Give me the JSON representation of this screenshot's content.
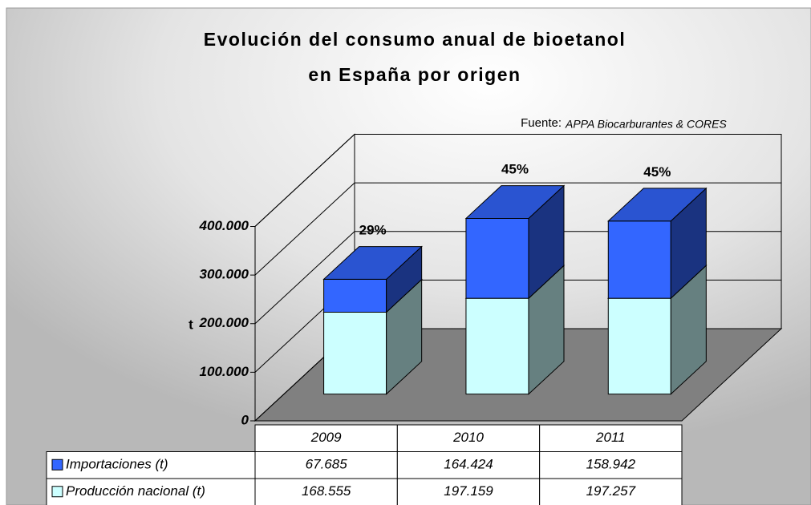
{
  "chart_data": {
    "type": "bar3d_stacked",
    "title": [
      "Evolución del consumo anual de bioetanol",
      "en España por origen"
    ],
    "source_label": "Fuente:",
    "source": "APPA Biocarburantes & CORES",
    "y_label": "t",
    "categories": [
      "2009",
      "2010",
      "2011"
    ],
    "series": [
      {
        "name": "Importaciones (t)",
        "color": "#3366ff",
        "values": [
          67685,
          164424,
          158942
        ],
        "value_labels": [
          "67.685",
          "164.424",
          "158.942"
        ]
      },
      {
        "name": "Producción nacional (t)",
        "color": "#ccffff",
        "values": [
          168555,
          197159,
          197257
        ],
        "value_labels": [
          "168.555",
          "197.159",
          "197.257"
        ]
      }
    ],
    "annotations": [
      "29%",
      "45%",
      "45%"
    ],
    "ylim": [
      0,
      400000
    ],
    "yticks": [
      0,
      {
        "value": 100000,
        "label": "100.000"
      },
      {
        "value": 200000,
        "label": "200.000"
      },
      {
        "value": 300000,
        "label": "300.000"
      },
      {
        "value": 400000,
        "label": "400.000"
      }
    ],
    "floor_color": "#808080",
    "grid": true
  }
}
